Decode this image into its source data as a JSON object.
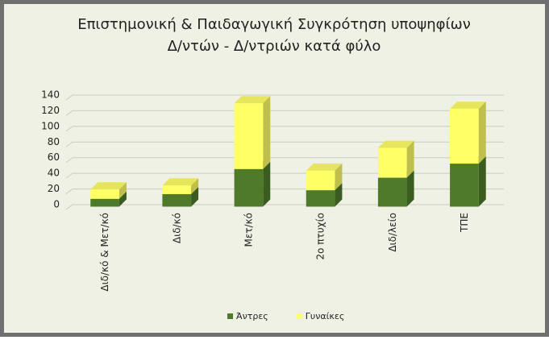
{
  "chart_data": {
    "type": "bar3d-stacked",
    "title": [
      "Επιστημονική & Παιδαγωγική Συγκρότηση υποψηφίων",
      "Δ/ντών - Δ/ντριών κατά φύλο"
    ],
    "categories": [
      "Διδ/κό & Μετ/κό",
      "Διδ/κό",
      "Μετ/κό",
      "2ο πτυχίο",
      "Διδ/λείο",
      "ΤΠΕ"
    ],
    "series": [
      {
        "name": "Άντρες",
        "color": "#4f7a2a",
        "values": [
          10,
          16,
          48,
          21,
          37,
          55
        ]
      },
      {
        "name": "Γυναίκες",
        "color": "#ffff66",
        "values": [
          12,
          11,
          84,
          25,
          38,
          70
        ]
      }
    ],
    "ylim": [
      0,
      140
    ],
    "yticks": [
      0,
      20,
      40,
      60,
      80,
      100,
      120,
      140
    ],
    "grid": true,
    "legend": "bottom"
  }
}
